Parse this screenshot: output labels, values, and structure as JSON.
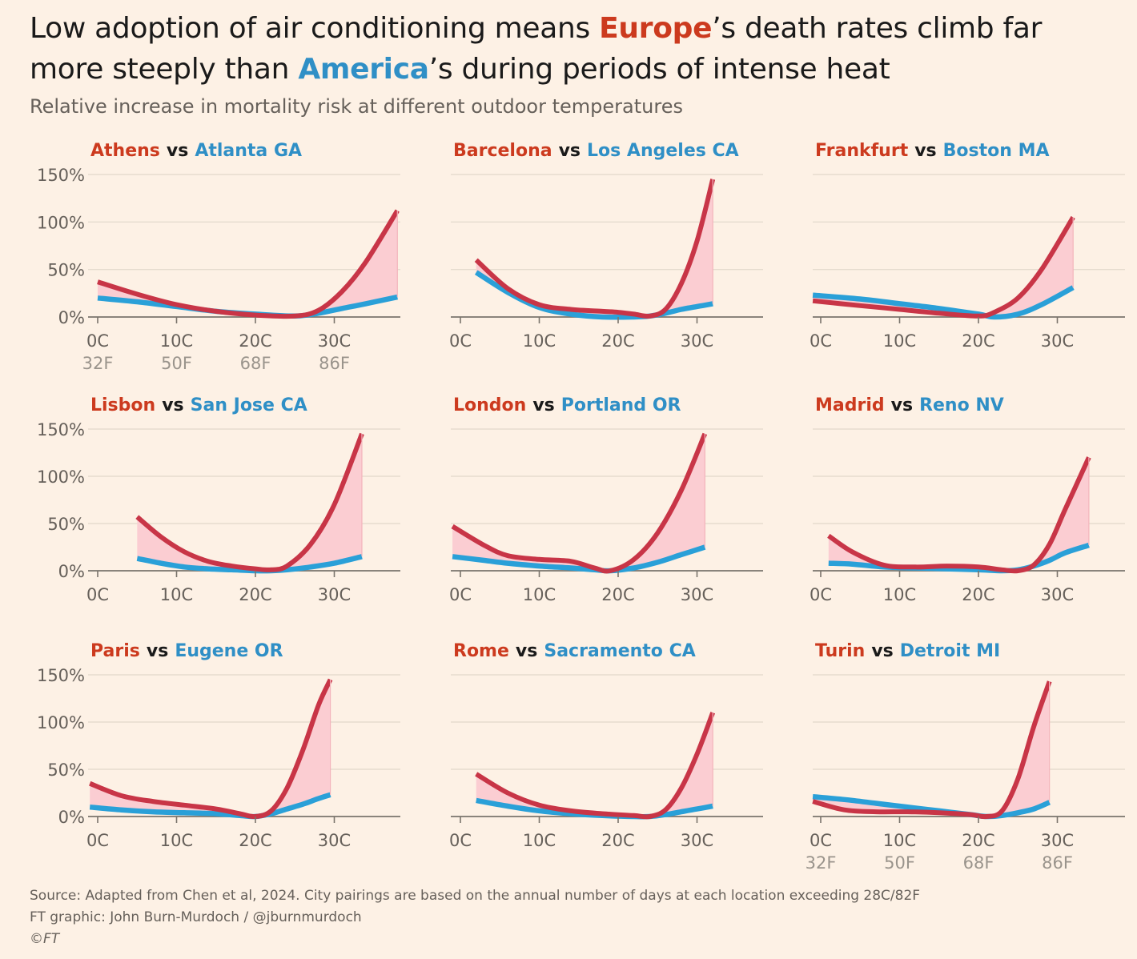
{
  "headline": {
    "part1": "Low adoption of air conditioning means ",
    "europe": "Europe",
    "part2": "’s death rates climb far more steeply than ",
    "america": "America",
    "part3": "’s during periods of intense heat"
  },
  "subtitle": "Relative increase in mortality risk at different outdoor temperatures",
  "colors": {
    "europe": "#c83547",
    "europe_title": "#cc3a1e",
    "america": "#2aa0d8",
    "america_title": "#2f8fc6",
    "gap_fill": "#fbcdd2",
    "background": "#fdf1e5",
    "gridline": "#e6dccf",
    "axis": "#7a746c"
  },
  "footer": {
    "source": "Source: Adapted from Chen et al, 2024. City pairings are based on the annual number of days at each location exceeding 28C/82F",
    "credit": "FT graphic: John Burn-Murdoch / @jburnmurdoch",
    "copyright": "©FT"
  },
  "chart_data": [
    {
      "type": "line",
      "europe_city": "Athens",
      "vs": "vs",
      "us_city": "Atlanta GA",
      "xlim": [
        0,
        39
      ],
      "ylim": [
        0,
        150
      ],
      "y_ticks": [
        "150%",
        "100%",
        "50%",
        "0%"
      ],
      "x_ticks": [
        "0C",
        "10C",
        "20C",
        "30C"
      ],
      "x_ticks_f": [
        "32F",
        "50F",
        "68F",
        "86F"
      ],
      "series": [
        {
          "name": "Athens",
          "x": [
            0,
            5,
            10,
            15,
            20,
            25,
            28,
            31,
            34,
            38
          ],
          "y": [
            37,
            24,
            13,
            6,
            2,
            1,
            7,
            27,
            58,
            112
          ]
        },
        {
          "name": "Atlanta GA",
          "x": [
            0,
            5,
            10,
            15,
            20,
            25,
            28,
            31,
            34,
            38
          ],
          "y": [
            20,
            16,
            11,
            6,
            3,
            1,
            4,
            9,
            14,
            21
          ]
        }
      ]
    },
    {
      "type": "line",
      "europe_city": "Barcelona",
      "vs": "vs",
      "us_city": "Los Angeles CA",
      "xlim": [
        0,
        38
      ],
      "ylim": [
        0,
        150
      ],
      "y_ticks": [],
      "x_ticks": [
        "0C",
        "10C",
        "20C",
        "30C"
      ],
      "x_ticks_f": [],
      "series": [
        {
          "name": "Barcelona",
          "x": [
            2,
            6,
            10,
            14,
            18,
            20,
            22,
            24,
            26,
            28,
            30,
            32
          ],
          "y": [
            60,
            30,
            13,
            8,
            6,
            5,
            3,
            1,
            8,
            35,
            80,
            145
          ]
        },
        {
          "name": "Los Angeles CA",
          "x": [
            2,
            6,
            10,
            14,
            18,
            22,
            24,
            26,
            28,
            30,
            32
          ],
          "y": [
            47,
            26,
            10,
            3,
            0,
            0,
            1,
            4,
            8,
            11,
            14
          ]
        }
      ]
    },
    {
      "type": "line",
      "europe_city": "Frankfurt",
      "vs": "vs",
      "us_city": "Boston MA",
      "xlim": [
        0,
        38
      ],
      "ylim": [
        0,
        150
      ],
      "y_ticks": [],
      "x_ticks": [
        "0C",
        "10C",
        "20C",
        "30C"
      ],
      "x_ticks_f": [],
      "series": [
        {
          "name": "Frankfurt",
          "x": [
            -1,
            5,
            10,
            15,
            20,
            22,
            25,
            28,
            32
          ],
          "y": [
            17,
            12,
            8,
            4,
            1,
            5,
            20,
            50,
            105
          ]
        },
        {
          "name": "Boston MA",
          "x": [
            -1,
            5,
            10,
            15,
            20,
            22,
            25,
            28,
            32
          ],
          "y": [
            23,
            19,
            14,
            9,
            3,
            0,
            3,
            13,
            31
          ]
        }
      ]
    },
    {
      "type": "line",
      "europe_city": "Lisbon",
      "vs": "vs",
      "us_city": "San Jose CA",
      "xlim": [
        0,
        38
      ],
      "ylim": [
        0,
        150
      ],
      "y_ticks": [
        "150%",
        "100%",
        "50%",
        "0%"
      ],
      "x_ticks": [
        "0C",
        "10C",
        "20C",
        "30C"
      ],
      "x_ticks_f": [],
      "series": [
        {
          "name": "Lisbon",
          "x": [
            5,
            8,
            11,
            14,
            17,
            20,
            22,
            24,
            27,
            30,
            33.5
          ],
          "y": [
            57,
            36,
            20,
            10,
            5,
            2,
            1,
            5,
            28,
            70,
            145
          ]
        },
        {
          "name": "San Jose CA",
          "x": [
            5,
            8,
            11,
            14,
            17,
            20,
            22,
            24,
            27,
            30,
            33.5
          ],
          "y": [
            13,
            8,
            4,
            2,
            1,
            0,
            0,
            1,
            4,
            8,
            15
          ]
        }
      ]
    },
    {
      "type": "line",
      "europe_city": "London",
      "vs": "vs",
      "us_city": "Portland OR",
      "xlim": [
        0,
        38
      ],
      "ylim": [
        0,
        150
      ],
      "y_ticks": [],
      "x_ticks": [
        "0C",
        "10C",
        "20C",
        "30C"
      ],
      "x_ticks_f": [],
      "series": [
        {
          "name": "London",
          "x": [
            -1,
            3,
            6,
            10,
            14,
            17,
            19,
            22,
            25,
            28,
            31
          ],
          "y": [
            47,
            27,
            16,
            12,
            10,
            3,
            0,
            12,
            40,
            85,
            145
          ]
        },
        {
          "name": "Portland OR",
          "x": [
            -1,
            3,
            6,
            10,
            14,
            17,
            19,
            22,
            25,
            28,
            31
          ],
          "y": [
            15,
            11,
            8,
            5,
            3,
            1,
            0,
            3,
            9,
            17,
            25
          ]
        }
      ]
    },
    {
      "type": "line",
      "europe_city": "Madrid",
      "vs": "vs",
      "us_city": "Reno NV",
      "xlim": [
        0,
        38
      ],
      "ylim": [
        0,
        150
      ],
      "y_ticks": [],
      "x_ticks": [
        "0C",
        "10C",
        "20C",
        "30C"
      ],
      "x_ticks_f": [],
      "series": [
        {
          "name": "Madrid",
          "x": [
            1,
            4,
            8,
            12,
            16,
            20,
            23,
            25,
            27,
            29,
            31,
            34
          ],
          "y": [
            37,
            20,
            6,
            4,
            5,
            4,
            1,
            0,
            6,
            28,
            65,
            120
          ]
        },
        {
          "name": "Reno NV",
          "x": [
            1,
            4,
            8,
            12,
            16,
            20,
            23,
            25,
            27,
            29,
            31,
            34
          ],
          "y": [
            8,
            7,
            4,
            3,
            2,
            1,
            0,
            1,
            5,
            11,
            19,
            27
          ]
        }
      ]
    },
    {
      "type": "line",
      "europe_city": "Paris",
      "vs": "vs",
      "us_city": "Eugene OR",
      "xlim": [
        0,
        38
      ],
      "ylim": [
        0,
        150
      ],
      "y_ticks": [
        "150%",
        "100%",
        "50%",
        "0%"
      ],
      "x_ticks": [
        "0C",
        "10C",
        "20C",
        "30C"
      ],
      "x_ticks_f": [],
      "series": [
        {
          "name": "Paris",
          "x": [
            -1,
            3,
            7,
            11,
            15,
            18,
            20,
            22,
            24,
            26,
            28,
            29.5
          ],
          "y": [
            35,
            22,
            16,
            12,
            8,
            3,
            0,
            6,
            30,
            70,
            118,
            145
          ]
        },
        {
          "name": "Eugene OR",
          "x": [
            -1,
            3,
            7,
            11,
            15,
            18,
            20,
            22,
            24,
            26,
            28,
            29.5
          ],
          "y": [
            10,
            7,
            5,
            4,
            3,
            1,
            0,
            3,
            8,
            13,
            19,
            23
          ]
        }
      ]
    },
    {
      "type": "line",
      "europe_city": "Rome",
      "vs": "vs",
      "us_city": "Sacramento CA",
      "xlim": [
        0,
        38
      ],
      "ylim": [
        0,
        150
      ],
      "y_ticks": [],
      "x_ticks": [
        "0C",
        "10C",
        "20C",
        "30C"
      ],
      "x_ticks_f": [],
      "series": [
        {
          "name": "Rome",
          "x": [
            2,
            6,
            10,
            14,
            18,
            22,
            24,
            26,
            28,
            30,
            32
          ],
          "y": [
            45,
            25,
            12,
            6,
            3,
            1,
            0,
            7,
            30,
            66,
            110
          ]
        },
        {
          "name": "Sacramento CA",
          "x": [
            2,
            6,
            10,
            14,
            18,
            22,
            24,
            26,
            28,
            30,
            32
          ],
          "y": [
            17,
            11,
            6,
            3,
            1,
            0,
            0,
            2,
            5,
            8,
            11
          ]
        }
      ]
    },
    {
      "type": "line",
      "europe_city": "Turin",
      "vs": "vs",
      "us_city": "Detroit MI",
      "xlim": [
        0,
        38
      ],
      "ylim": [
        0,
        150
      ],
      "y_ticks": [],
      "x_ticks": [
        "0C",
        "10C",
        "20C",
        "30C"
      ],
      "x_ticks_f": [
        "32F",
        "50F",
        "68F",
        "86F"
      ],
      "series": [
        {
          "name": "Turin",
          "x": [
            -1,
            3,
            7,
            11,
            15,
            19,
            21,
            23,
            25,
            27,
            29
          ],
          "y": [
            16,
            7,
            5,
            5,
            4,
            2,
            0,
            6,
            40,
            95,
            143
          ]
        },
        {
          "name": "Detroit MI",
          "x": [
            -1,
            3,
            7,
            11,
            15,
            19,
            21,
            23,
            25,
            27,
            29
          ],
          "y": [
            21,
            18,
            14,
            10,
            6,
            2,
            0,
            1,
            4,
            8,
            15
          ]
        }
      ]
    }
  ]
}
